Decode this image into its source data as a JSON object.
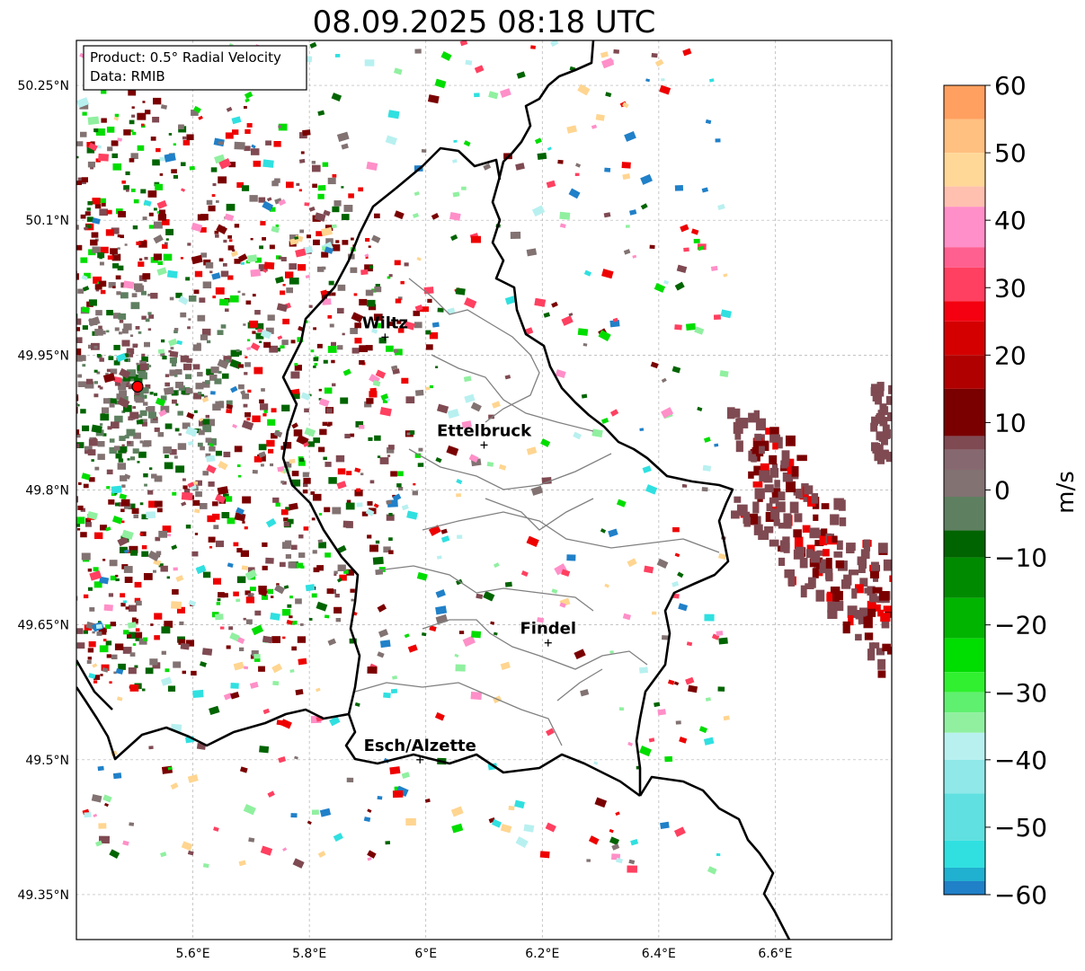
{
  "title": "08.09.2025 08:18 UTC",
  "info_box": {
    "product": "Product: 0.5° Radial Velocity",
    "data": "Data: RMIB"
  },
  "lat_ticks": [
    "50.25°N",
    "50.1°N",
    "49.95°N",
    "49.8°N",
    "49.65°N",
    "49.5°N",
    "49.35°N"
  ],
  "lon_ticks": [
    "5.6°E",
    "5.8°E",
    "6°E",
    "6.2°E",
    "6.4°E",
    "6.6°E"
  ],
  "map_extent": {
    "lon_min": 5.4,
    "lon_max": 6.8,
    "lat_min": 49.3,
    "lat_max": 50.3
  },
  "lat_values": [
    50.25,
    50.1,
    49.95,
    49.8,
    49.65,
    49.5,
    49.35
  ],
  "lon_values": [
    5.6,
    5.8,
    6.0,
    6.2,
    6.4,
    6.6
  ],
  "cities": [
    {
      "name": "Wiltz",
      "lon": 5.93,
      "lat": 49.97
    },
    {
      "name": "Ettelbruck",
      "lon": 6.1,
      "lat": 49.85
    },
    {
      "name": "Findel",
      "lon": 6.21,
      "lat": 49.63
    },
    {
      "name": "Esch/Alzette",
      "lon": 5.99,
      "lat": 49.5
    }
  ],
  "radar_site": {
    "lon": 5.505,
    "lat": 49.915
  },
  "colorbar": {
    "label": "m/s",
    "ticks": [
      "60",
      "50",
      "40",
      "30",
      "20",
      "10",
      "0",
      "−10",
      "−20",
      "−30",
      "−40",
      "−50",
      "−60"
    ],
    "min": -60,
    "max": 60,
    "colors": {
      "orange": "#ffa060",
      "peach": "#ffd590",
      "pink": "#ff8fc8",
      "red_pink": "#ff4060",
      "red": "#ee0000",
      "dark_red": "#7a0000",
      "maroon_gray": "#7f4a52",
      "gray": "#827272",
      "dark_green": "#006400",
      "green": "#00dd00",
      "light_green": "#90f0a0",
      "light_cyan": "#b8f0f0",
      "cyan": "#30e0e0",
      "blue": "#2080c8"
    }
  }
}
